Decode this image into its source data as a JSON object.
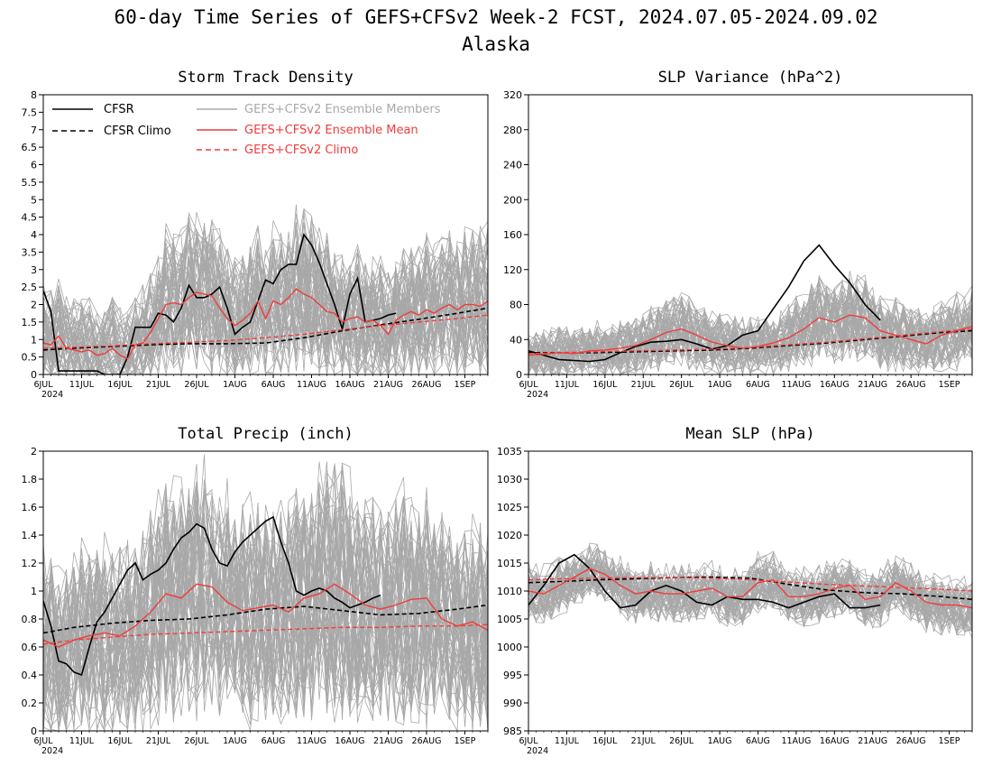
{
  "figure": {
    "title": "60-day Time Series of GEFS+CFSv2 Week-2 FCST, 2024.07.05-2024.09.02",
    "subtitle": "Alaska"
  },
  "colors": {
    "cfsr": "#000000",
    "ensemble_members": "#a8a8a8",
    "ensemble_mean": "#f03c3c",
    "gefs_climo": "#f03c3c"
  },
  "legend": [
    {
      "label": "CFSR",
      "style": "solid",
      "color": "#000000"
    },
    {
      "label": "CFSR Climo",
      "style": "dashed",
      "color": "#000000"
    },
    {
      "label": "GEFS+CFSv2 Ensemble Members",
      "style": "solid",
      "color": "#a8a8a8"
    },
    {
      "label": "GEFS+CFSv2 Ensemble Mean",
      "style": "solid",
      "color": "#f03c3c"
    },
    {
      "label": "GEFS+CFSv2 Climo",
      "style": "dashed",
      "color": "#f03c3c"
    }
  ],
  "x_axis": {
    "day_range": [
      1,
      59
    ],
    "tick_days": [
      1,
      6,
      11,
      16,
      21,
      26,
      31,
      36,
      41,
      46,
      51,
      56
    ],
    "tick_labels": [
      "6JUL",
      "11JUL",
      "16JUL",
      "21JUL",
      "26JUL",
      "1AUG",
      "6AUG",
      "11AUG",
      "16AUG",
      "21AUG",
      "26AUG",
      "1SEP"
    ],
    "year_label": "2024"
  },
  "chart_data": [
    {
      "type": "line",
      "title": "Storm Track Density",
      "ylim": [
        0,
        8
      ],
      "yticks": [
        0,
        0.5,
        1,
        1.5,
        2,
        2.5,
        3,
        3.5,
        4,
        4.5,
        5,
        5.5,
        6,
        6.5,
        7,
        7.5,
        8
      ],
      "ytick_labels": [
        "0",
        "0.5",
        "1",
        "1.5",
        "2",
        "2.5",
        "3",
        "3.5",
        "4",
        "4.5",
        "5",
        "5.5",
        "6",
        "6.5",
        "7",
        "7.5",
        "8"
      ],
      "x_days": [
        1,
        59
      ],
      "series": [
        {
          "name": "CFSR",
          "days": [
            1,
            2,
            3,
            4,
            5,
            6,
            7,
            8,
            9,
            10,
            11,
            12,
            13,
            14,
            15,
            16,
            17,
            18,
            19,
            20,
            21,
            22,
            23,
            24,
            25,
            26,
            27,
            28,
            29,
            30,
            31,
            32,
            33,
            34,
            35,
            36,
            37,
            38,
            39,
            40,
            41,
            42,
            43,
            44,
            45,
            46,
            47
          ],
          "values": [
            2.4,
            1.8,
            0.1,
            0.1,
            0.1,
            0.1,
            0.1,
            0.1,
            0.0,
            0.0,
            0.0,
            0.5,
            1.35,
            1.35,
            1.35,
            1.75,
            1.7,
            1.5,
            1.9,
            2.55,
            2.2,
            2.2,
            2.3,
            2.5,
            1.9,
            1.15,
            1.35,
            1.5,
            2.1,
            2.7,
            2.6,
            3.0,
            3.15,
            3.15,
            4.0,
            3.7,
            3.2,
            2.6,
            2.0,
            1.3,
            2.3,
            2.75,
            1.5,
            1.55,
            1.6,
            1.7,
            1.75
          ]
        },
        {
          "name": "CFSR Climo",
          "days": [
            1,
            5,
            10,
            15,
            20,
            25,
            30,
            35,
            40,
            45,
            50,
            55,
            59
          ],
          "values": [
            0.7,
            0.75,
            0.8,
            0.85,
            0.88,
            0.88,
            0.9,
            1.05,
            1.25,
            1.42,
            1.58,
            1.75,
            1.9
          ]
        },
        {
          "name": "GEFS+CFSv2 Ensemble Mean",
          "days": [
            1,
            2,
            3,
            4,
            5,
            6,
            7,
            8,
            9,
            10,
            11,
            12,
            13,
            14,
            15,
            16,
            17,
            18,
            19,
            20,
            21,
            22,
            23,
            24,
            25,
            26,
            27,
            28,
            29,
            30,
            31,
            32,
            33,
            34,
            35,
            36,
            37,
            38,
            39,
            40,
            41,
            42,
            43,
            44,
            45,
            46,
            47,
            48,
            49,
            50,
            51,
            52,
            53,
            54,
            55,
            56,
            57,
            58,
            59
          ],
          "values": [
            0.9,
            0.85,
            1.1,
            0.75,
            0.7,
            0.65,
            0.7,
            0.55,
            0.6,
            0.75,
            0.55,
            0.45,
            0.85,
            0.9,
            1.2,
            1.6,
            2.0,
            2.05,
            2.0,
            2.2,
            2.35,
            2.3,
            2.25,
            1.9,
            1.6,
            1.4,
            1.55,
            1.75,
            2.1,
            1.6,
            2.1,
            2.0,
            2.2,
            2.45,
            2.3,
            2.2,
            2.0,
            1.8,
            1.75,
            1.5,
            1.6,
            1.65,
            1.5,
            1.55,
            1.4,
            1.15,
            1.55,
            1.7,
            1.8,
            1.7,
            1.85,
            1.75,
            1.9,
            2.0,
            1.85,
            2.0,
            2.0,
            1.95,
            2.1
          ]
        },
        {
          "name": "GEFS+CFSv2 Climo",
          "days": [
            1,
            5,
            10,
            15,
            20,
            25,
            30,
            35,
            40,
            45,
            50,
            55,
            59
          ],
          "values": [
            0.75,
            0.78,
            0.82,
            0.88,
            0.92,
            0.97,
            1.05,
            1.15,
            1.28,
            1.4,
            1.5,
            1.6,
            1.7
          ]
        }
      ]
    },
    {
      "type": "line",
      "title": "SLP Variance (hPa^2)",
      "ylim": [
        0,
        320
      ],
      "yticks": [
        0,
        40,
        80,
        120,
        160,
        200,
        240,
        280,
        320
      ],
      "ytick_labels": [
        "0",
        "40",
        "80",
        "120",
        "160",
        "200",
        "240",
        "280",
        "320"
      ],
      "x_days": [
        1,
        59
      ],
      "series": [
        {
          "name": "CFSR",
          "days": [
            1,
            3,
            5,
            7,
            9,
            11,
            13,
            15,
            17,
            19,
            21,
            23,
            25,
            27,
            29,
            31,
            33,
            35,
            37,
            39,
            41,
            43,
            45,
            47
          ],
          "values": [
            27,
            22,
            17,
            16,
            15,
            17,
            25,
            32,
            37,
            38,
            40,
            35,
            29,
            33,
            45,
            50,
            75,
            100,
            130,
            148,
            125,
            105,
            80,
            62
          ]
        },
        {
          "name": "CFSR Climo",
          "days": [
            1,
            5,
            10,
            15,
            20,
            25,
            30,
            35,
            40,
            45,
            50,
            55,
            59
          ],
          "values": [
            25,
            25,
            25,
            26,
            27,
            28,
            30,
            33,
            36,
            40,
            44,
            48,
            50
          ]
        },
        {
          "name": "GEFS+CFSv2 Ensemble Mean",
          "days": [
            1,
            3,
            5,
            7,
            9,
            11,
            13,
            15,
            17,
            19,
            21,
            23,
            25,
            27,
            29,
            31,
            33,
            35,
            37,
            39,
            41,
            43,
            45,
            47,
            49,
            51,
            53,
            55,
            57,
            59
          ],
          "values": [
            22,
            23,
            25,
            24,
            27,
            28,
            30,
            33,
            40,
            48,
            52,
            45,
            37,
            33,
            30,
            32,
            36,
            42,
            52,
            65,
            60,
            68,
            65,
            50,
            45,
            40,
            35,
            45,
            50,
            55
          ]
        },
        {
          "name": "GEFS+CFSv2 Climo",
          "days": [
            1,
            5,
            10,
            15,
            20,
            25,
            30,
            35,
            40,
            45,
            50,
            55,
            59
          ],
          "values": [
            24,
            25,
            26,
            27,
            28,
            29,
            31,
            34,
            37,
            41,
            45,
            49,
            52
          ]
        }
      ]
    },
    {
      "type": "line",
      "title": "Total Precip (inch)",
      "ylim": [
        0,
        2
      ],
      "yticks": [
        0,
        0.2,
        0.4,
        0.6,
        0.8,
        1,
        1.2,
        1.4,
        1.6,
        1.8,
        2
      ],
      "ytick_labels": [
        "0",
        "0.2",
        "0.4",
        "0.6",
        "0.8",
        "1",
        "1.2",
        "1.4",
        "1.6",
        "1.8",
        "2"
      ],
      "x_days": [
        1,
        59
      ],
      "series": [
        {
          "name": "CFSR",
          "days": [
            1,
            2,
            3,
            4,
            5,
            6,
            7,
            8,
            9,
            10,
            11,
            12,
            13,
            14,
            15,
            16,
            17,
            18,
            19,
            20,
            21,
            22,
            23,
            24,
            25,
            26,
            27,
            28,
            29,
            30,
            31,
            32,
            33,
            34,
            35,
            36,
            37,
            38,
            39,
            40,
            41,
            42,
            43,
            44,
            45
          ],
          "values": [
            0.93,
            0.75,
            0.5,
            0.48,
            0.42,
            0.4,
            0.6,
            0.78,
            0.85,
            0.95,
            1.05,
            1.15,
            1.2,
            1.08,
            1.12,
            1.15,
            1.2,
            1.3,
            1.38,
            1.42,
            1.48,
            1.45,
            1.3,
            1.2,
            1.18,
            1.28,
            1.35,
            1.4,
            1.45,
            1.5,
            1.53,
            1.35,
            1.2,
            1.0,
            0.97,
            1.0,
            1.02,
            1.0,
            0.95,
            0.92,
            0.88,
            0.9,
            0.92,
            0.95,
            0.97
          ]
        },
        {
          "name": "CFSR Climo",
          "days": [
            1,
            5,
            10,
            15,
            20,
            25,
            30,
            35,
            40,
            45,
            50,
            55,
            59
          ],
          "values": [
            0.7,
            0.74,
            0.77,
            0.79,
            0.8,
            0.83,
            0.87,
            0.89,
            0.86,
            0.83,
            0.84,
            0.87,
            0.9
          ]
        },
        {
          "name": "GEFS+CFSv2 Ensemble Mean",
          "days": [
            1,
            3,
            5,
            7,
            9,
            11,
            13,
            15,
            17,
            19,
            21,
            23,
            25,
            27,
            29,
            31,
            33,
            35,
            37,
            39,
            41,
            43,
            45,
            47,
            49,
            51,
            53,
            55,
            57,
            59
          ],
          "values": [
            0.65,
            0.6,
            0.65,
            0.68,
            0.7,
            0.68,
            0.75,
            0.85,
            0.98,
            0.95,
            1.05,
            1.03,
            0.92,
            0.86,
            0.88,
            0.9,
            0.85,
            0.95,
            0.98,
            1.05,
            0.98,
            0.9,
            0.87,
            0.9,
            0.94,
            0.95,
            0.8,
            0.75,
            0.78,
            0.72
          ]
        },
        {
          "name": "GEFS+CFSv2 Climo",
          "days": [
            1,
            5,
            10,
            15,
            20,
            25,
            30,
            35,
            40,
            45,
            50,
            55,
            59
          ],
          "values": [
            0.62,
            0.65,
            0.67,
            0.69,
            0.7,
            0.71,
            0.72,
            0.73,
            0.74,
            0.74,
            0.75,
            0.75,
            0.76
          ]
        }
      ]
    },
    {
      "type": "line",
      "title": "Mean SLP (hPa)",
      "ylim": [
        985,
        1035
      ],
      "yticks": [
        985,
        990,
        995,
        1000,
        1005,
        1010,
        1015,
        1020,
        1025,
        1030,
        1035
      ],
      "ytick_labels": [
        "985",
        "990",
        "995",
        "1000",
        "1005",
        "1010",
        "1015",
        "1020",
        "1025",
        "1030",
        "1035"
      ],
      "x_days": [
        1,
        59
      ],
      "series": [
        {
          "name": "CFSR",
          "days": [
            1,
            3,
            5,
            7,
            9,
            11,
            13,
            15,
            17,
            19,
            21,
            23,
            25,
            27,
            29,
            31,
            33,
            35,
            37,
            39,
            41,
            43,
            45,
            47
          ],
          "values": [
            1007.5,
            1011,
            1015,
            1016.5,
            1014,
            1010,
            1007,
            1007.5,
            1010,
            1011,
            1010,
            1008,
            1007.5,
            1009,
            1008.5,
            1008.5,
            1008,
            1007,
            1008,
            1009,
            1009.5,
            1007,
            1007,
            1007.5
          ]
        },
        {
          "name": "CFSR Climo",
          "days": [
            1,
            5,
            10,
            15,
            20,
            25,
            30,
            35,
            40,
            45,
            50,
            55,
            59
          ],
          "values": [
            1011.5,
            1011.7,
            1012,
            1012.2,
            1012.4,
            1012.5,
            1012.3,
            1011.2,
            1010.2,
            1009.7,
            1009.5,
            1009,
            1008.5
          ]
        },
        {
          "name": "GEFS+CFSv2 Ensemble Mean",
          "days": [
            1,
            3,
            5,
            7,
            9,
            11,
            13,
            15,
            17,
            19,
            21,
            23,
            25,
            27,
            29,
            31,
            33,
            35,
            37,
            39,
            41,
            43,
            45,
            47,
            49,
            51,
            53,
            55,
            57,
            59
          ],
          "values": [
            1010,
            1009.5,
            1011,
            1012.5,
            1014,
            1013,
            1011,
            1009.5,
            1010,
            1009.5,
            1009.5,
            1010,
            1010.5,
            1009,
            1009,
            1011.5,
            1012,
            1009,
            1009,
            1009.5,
            1010.5,
            1011,
            1008.5,
            1009,
            1011.5,
            1010,
            1008,
            1007.5,
            1007.5,
            1007
          ]
        },
        {
          "name": "GEFS+CFSv2 Climo",
          "days": [
            1,
            5,
            10,
            15,
            20,
            25,
            30,
            35,
            40,
            45,
            50,
            55,
            59
          ],
          "values": [
            1012,
            1012.2,
            1012.3,
            1012.4,
            1012.4,
            1012.3,
            1012,
            1011.6,
            1011.2,
            1010.9,
            1010.6,
            1010.3,
            1010
          ]
        }
      ]
    }
  ]
}
